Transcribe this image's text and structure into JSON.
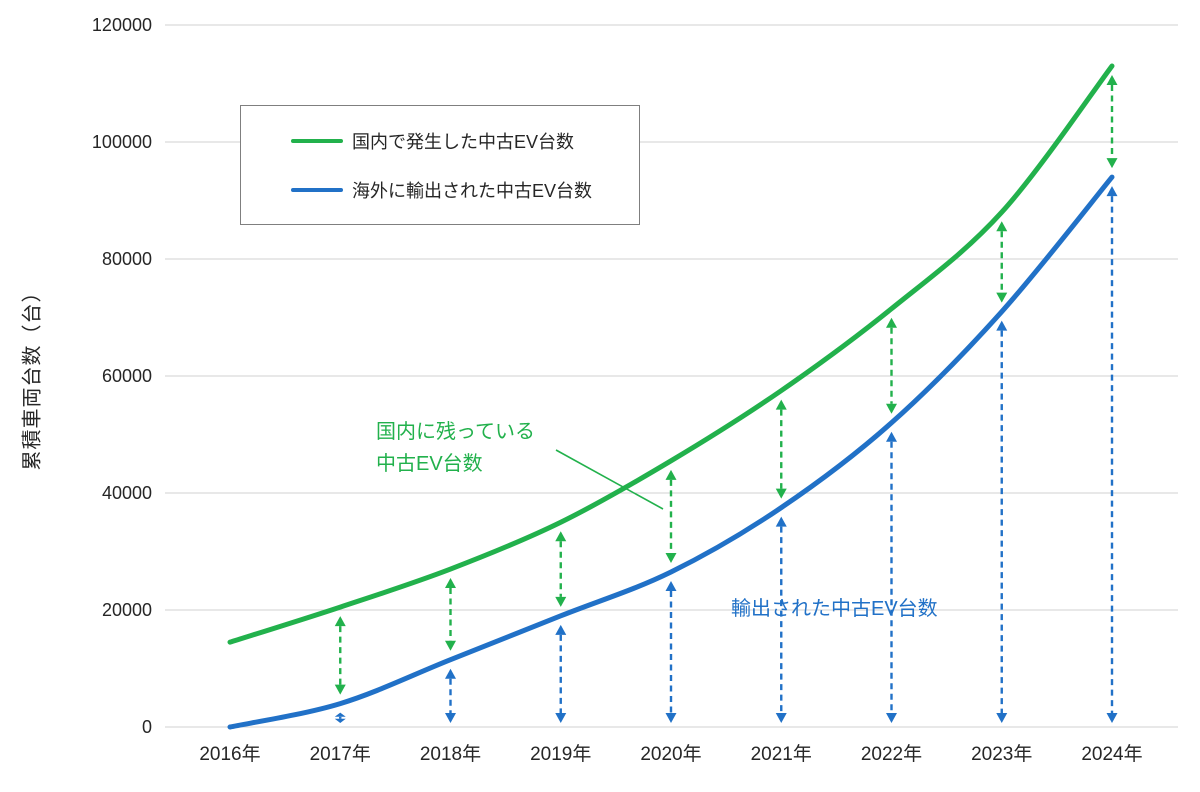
{
  "chart_data": {
    "type": "line",
    "title": "",
    "ylabel": "累積車両台数（台）",
    "xlabel": "",
    "categories": [
      "2016年",
      "2017年",
      "2018年",
      "2019年",
      "2020年",
      "2021年",
      "2022年",
      "2023年",
      "2024年"
    ],
    "series": [
      {
        "name": "国内で発生した中古EV台数",
        "color": "#22b14c",
        "values": [
          14500,
          20500,
          27000,
          35000,
          45500,
          57500,
          71500,
          88000,
          113000
        ]
      },
      {
        "name": "海外に輸出された中古EV台数",
        "color": "#2171c7",
        "values": [
          0,
          4000,
          11500,
          19000,
          26500,
          37500,
          52000,
          71000,
          94000
        ]
      }
    ],
    "ylim": [
      0,
      120000
    ],
    "y_ticks": [
      0,
      20000,
      40000,
      60000,
      80000,
      100000,
      120000
    ],
    "grid": true,
    "grid_color": "#d9d9d9",
    "legend_position": "top-left",
    "annotations": {
      "domestic_remaining": {
        "lines": [
          "国内に残っている",
          "中古EV台数"
        ],
        "color": "#22b14c"
      },
      "exported": {
        "text": "輸出された中古EV台数",
        "color": "#2171c7"
      }
    },
    "arrows": {
      "green_gap_years": [
        "2017年",
        "2018年",
        "2019年",
        "2020年",
        "2021年",
        "2022年",
        "2023年",
        "2024年"
      ],
      "blue_export_years": [
        "2017年",
        "2018年",
        "2019年",
        "2020年",
        "2021年",
        "2022年",
        "2023年",
        "2024年"
      ]
    }
  }
}
